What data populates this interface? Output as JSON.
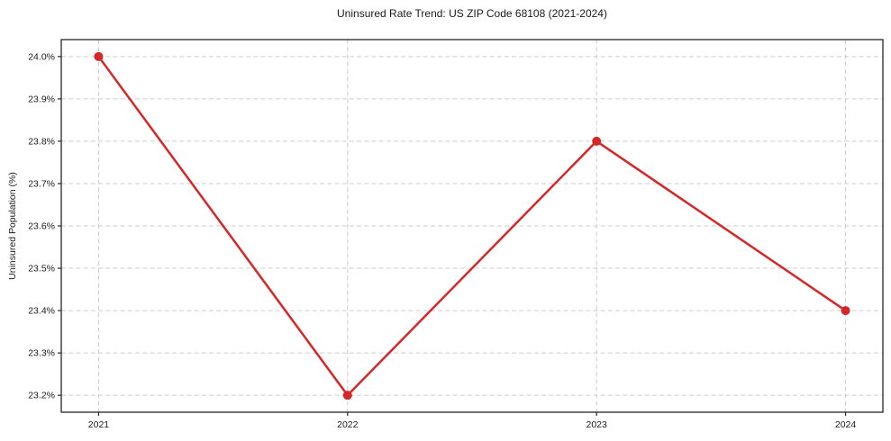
{
  "chart_data": {
    "type": "line",
    "title": "Uninsured Rate Trend: US ZIP Code 68108 (2021-2024)",
    "xlabel": "",
    "ylabel": "Uninsured Population (%)",
    "x": [
      2021,
      2022,
      2023,
      2024
    ],
    "values": [
      24.0,
      23.2,
      23.8,
      23.4
    ],
    "series_name": "Uninsured rate",
    "xtick_labels": [
      "2021",
      "2022",
      "2023",
      "2024"
    ],
    "ytick_values": [
      23.2,
      23.3,
      23.4,
      23.5,
      23.6,
      23.7,
      23.8,
      23.9,
      24.0
    ],
    "ytick_labels": [
      "23.2%",
      "23.3%",
      "23.4%",
      "23.5%",
      "23.6%",
      "23.7%",
      "23.8%",
      "23.9%",
      "24.0%"
    ],
    "xlim": [
      2020.85,
      2024.15
    ],
    "ylim": [
      23.16,
      24.04
    ],
    "grid": true,
    "grid_style": "dashed",
    "legend_position": "none",
    "line_color": "#d62728",
    "marker": "circle",
    "marker_radius": 5,
    "background_color": "#ffffff"
  }
}
